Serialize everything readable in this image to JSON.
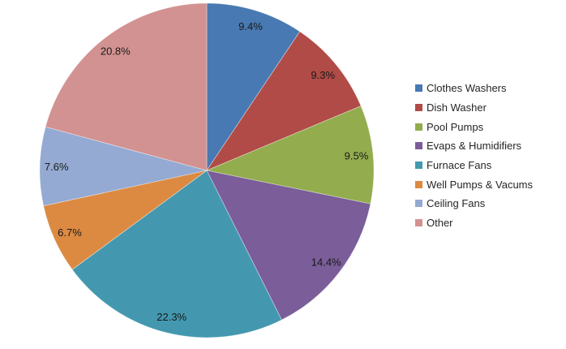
{
  "canvas": {
    "background": "#FFFFFF"
  },
  "chart_data": {
    "type": "pie",
    "title": "",
    "categories": [
      "Clothes Washers",
      "Dish Washer",
      "Pool Pumps",
      "Evaps & Humidifiers",
      "Furnace Fans",
      "Well Pumps & Vacums",
      "Ceiling Fans",
      "Other"
    ],
    "values": [
      9.4,
      9.3,
      9.5,
      14.4,
      22.3,
      6.7,
      7.6,
      20.8
    ],
    "slice_labels": [
      "9.4%",
      "9.3%",
      "9.5%",
      "14.4%",
      "22.3%",
      "6.7%",
      "7.6%",
      "20.8%"
    ],
    "colors": [
      "#4879B2",
      "#B04B47",
      "#93AC4E",
      "#7A5D99",
      "#4398AF",
      "#DC8A42",
      "#94AAD2",
      "#D29291"
    ],
    "label_position": "inside-end",
    "label_color": "#1a1a1a",
    "start_angle_deg": 0,
    "direction": "clockwise",
    "legend_position": "right"
  }
}
